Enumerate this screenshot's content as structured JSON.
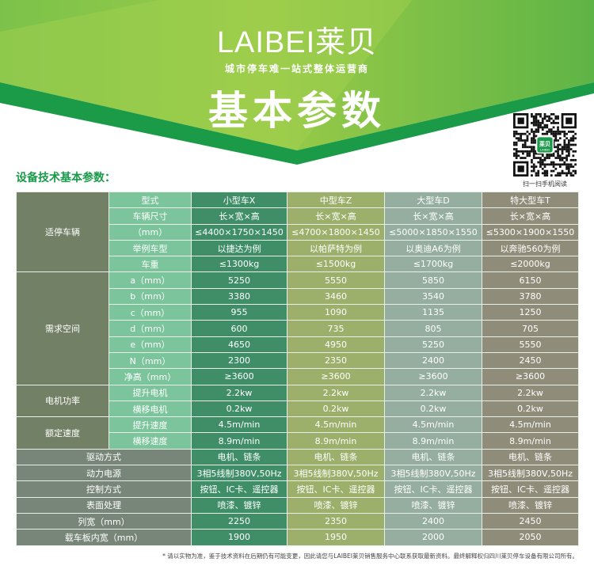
{
  "header": {
    "logo": "LAIBEI莱贝",
    "slogan": "城市停车难一站式整体运营商",
    "title": "基本参数",
    "brand_color": "#1a9a4a"
  },
  "section_title": "设备技术基本参数：",
  "qr": {
    "caption": "扫一扫手机阅读",
    "center_logo": "莱贝 LAIBEI"
  },
  "table": {
    "columns": [
      "型式",
      "小型车X",
      "中型车Z",
      "大型车D",
      "特大型车T"
    ],
    "groups": [
      {
        "label": "适停车辆",
        "rows": [
          {
            "label": "车辆尺寸",
            "values": [
              "长×宽×高",
              "长×宽×高",
              "长×宽×高",
              "长×宽×高"
            ]
          },
          {
            "label": "（mm）",
            "values": [
              "≤4400×1750×1450",
              "≤4700×1800×1450",
              "≤5000×1850×1550",
              "≤5300×1900×1550"
            ]
          },
          {
            "label": "举例车型",
            "values": [
              "以捷达为例",
              "以帕萨特为例",
              "以奥迪A6为例",
              "以奔驰560为例"
            ]
          },
          {
            "label": "车重",
            "values": [
              "≤1300kg",
              "≤1500kg",
              "≤1700kg",
              "≤2000kg"
            ]
          }
        ]
      },
      {
        "label": "需求空间",
        "rows": [
          {
            "label": "a（mm）",
            "values": [
              "5250",
              "5550",
              "5850",
              "6150"
            ]
          },
          {
            "label": "b（mm）",
            "values": [
              "3380",
              "3460",
              "3540",
              "3780"
            ]
          },
          {
            "label": "c（mm）",
            "values": [
              "955",
              "1090",
              "1135",
              "1250"
            ]
          },
          {
            "label": "d（mm）",
            "values": [
              "600",
              "735",
              "805",
              "705"
            ]
          },
          {
            "label": "e（mm）",
            "values": [
              "4650",
              "4950",
              "5250",
              "5550"
            ]
          },
          {
            "label": "N（mm）",
            "values": [
              "2300",
              "2350",
              "2400",
              "2450"
            ]
          },
          {
            "label": "净高（mm）",
            "values": [
              "≥3600",
              "≥3600",
              "≥3600",
              "≥3600"
            ]
          }
        ]
      },
      {
        "label": "电机功率",
        "rows": [
          {
            "label": "提升电机",
            "values": [
              "2.2kw",
              "2.2kw",
              "2.2kw",
              "2.2kw"
            ]
          },
          {
            "label": "横移电机",
            "values": [
              "0.2kw",
              "0.2kw",
              "0.2kw",
              "0.2kw"
            ]
          }
        ]
      },
      {
        "label": "额定速度",
        "rows": [
          {
            "label": "提升速度",
            "values": [
              "4.5m/min",
              "4.5m/min",
              "4.5m/min",
              "4.5m/min"
            ]
          },
          {
            "label": "横移速度",
            "values": [
              "8.9m/min",
              "8.9m/min",
              "8.9m/min",
              "8.9m/min"
            ]
          }
        ]
      }
    ],
    "bottom_rows": [
      {
        "label": "驱动方式",
        "values": [
          "电机、链条",
          "电机、链条",
          "电机、链条",
          "电机、链条"
        ]
      },
      {
        "label": "动力电源",
        "values": [
          "3相5线制380V,50Hz",
          "3相5线制380V,50Hz",
          "3相5线制380V,50Hz",
          "3相5线制380V,50Hz"
        ]
      },
      {
        "label": "控制方式",
        "values": [
          "按钮、IC卡、遥控器",
          "按钮、IC卡、遥控器",
          "按钮、IC卡、遥控器",
          "按钮、IC卡、遥控器"
        ]
      },
      {
        "label": "表面处理",
        "values": [
          "喷漆、镀锌",
          "喷漆、镀锌",
          "喷漆、镀锌",
          "喷漆、镀锌"
        ]
      },
      {
        "label": "列宽（mm）",
        "values": [
          "2250",
          "2350",
          "2400",
          "2450"
        ]
      },
      {
        "label": "载车板内宽（mm）",
        "values": [
          "1900",
          "1950",
          "2000",
          "2050"
        ]
      }
    ]
  },
  "footnote": "* 请以实物为准，鉴于技术资料在后期仍有可能变更，因此请您与LAIBEI莱贝销售服务中心联系获取最新资料。最终解释权归四川莱贝停车设备有限公司所有。"
}
